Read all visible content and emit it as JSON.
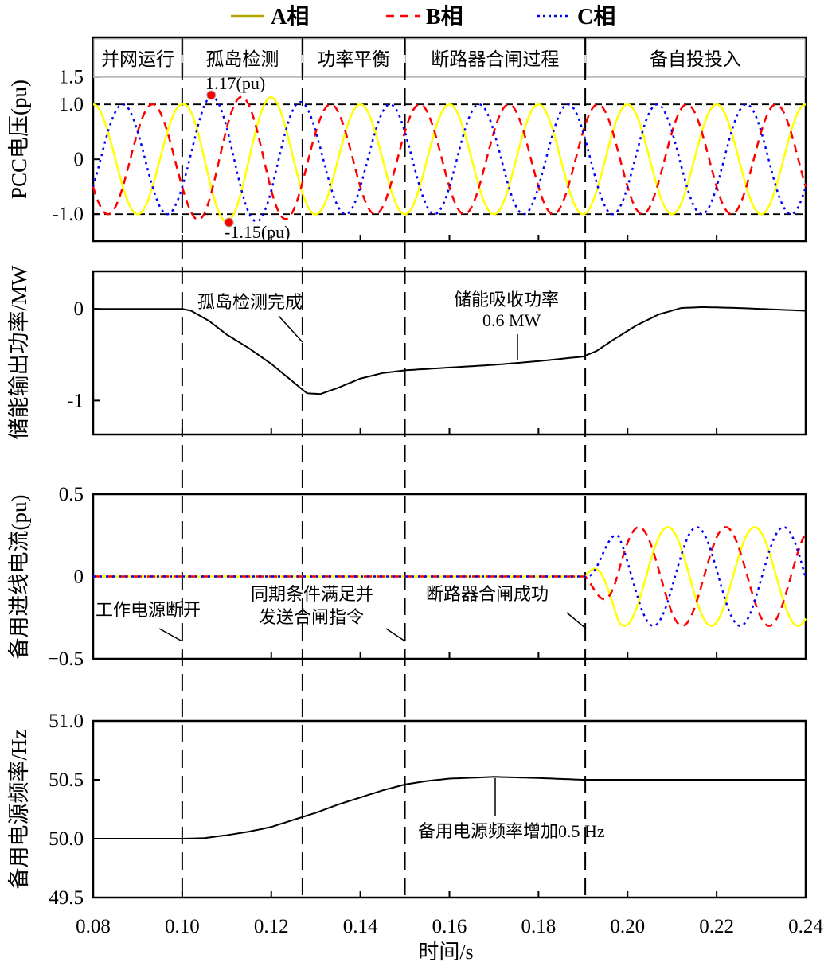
{
  "chart_data": {
    "type": "line",
    "legend": {
      "placement": "top",
      "entries": [
        "A相",
        "B相",
        "C相"
      ]
    },
    "series_colors": {
      "A": "#ffff00",
      "B": "#ff0000",
      "C": "#0000ff",
      "legend_A": "#b0a800"
    },
    "xlabel": "时间/s",
    "xlim": [
      0.08,
      0.24
    ],
    "xticks": [
      "0.08",
      "0.10",
      "0.12",
      "0.14",
      "0.16",
      "0.18",
      "0.20",
      "0.22",
      "0.24"
    ],
    "event_times": [
      0.1,
      0.127,
      0.15,
      0.1905
    ],
    "phases": [
      "并网运行",
      "孤岛检测",
      "功率平衡",
      "断路器合闸过程",
      "备自投投入"
    ],
    "panels": [
      {
        "ylabel": "PCC电压(pu)",
        "ylim": [
          -1.49,
          2.22
        ],
        "yticks": [
          {
            "v": 1.5,
            "t": "1.5"
          },
          {
            "v": 1.0,
            "t": "1.0"
          },
          {
            "v": 0,
            "t": "0"
          },
          {
            "v": -1.0,
            "t": "-1.0"
          }
        ],
        "reference_lines": [
          1.0,
          -1.0
        ],
        "waveform": {
          "frequency_hz": 50,
          "phase_offsets_deg": {
            "A": 0,
            "B": 120,
            "C": -120
          },
          "amplitude_envelope": [
            [
              0.08,
              1.0
            ],
            [
              0.1,
              1.0
            ],
            [
              0.105,
              1.14
            ],
            [
              0.12,
              1.13
            ],
            [
              0.13,
              1.0
            ],
            [
              0.24,
              1.0
            ]
          ]
        },
        "annotations": [
          "1.17(pu)",
          "-1.15(pu)"
        ],
        "marked_points": [
          {
            "x": 0.1065,
            "y": 1.17
          },
          {
            "x": 0.1105,
            "y": -1.15
          }
        ]
      },
      {
        "ylabel": "储能输出功率/MW",
        "ylim": [
          -1.37,
          0.41
        ],
        "yticks": [
          {
            "v": 0,
            "t": "0"
          },
          {
            "v": -1,
            "t": "-1"
          }
        ],
        "points": [
          [
            0.08,
            0
          ],
          [
            0.1,
            0
          ],
          [
            0.102,
            -0.02
          ],
          [
            0.106,
            -0.13
          ],
          [
            0.11,
            -0.28
          ],
          [
            0.115,
            -0.43
          ],
          [
            0.12,
            -0.6
          ],
          [
            0.125,
            -0.8
          ],
          [
            0.128,
            -0.92
          ],
          [
            0.131,
            -0.93
          ],
          [
            0.135,
            -0.86
          ],
          [
            0.14,
            -0.76
          ],
          [
            0.145,
            -0.7
          ],
          [
            0.15,
            -0.67
          ],
          [
            0.16,
            -0.64
          ],
          [
            0.17,
            -0.61
          ],
          [
            0.18,
            -0.57
          ],
          [
            0.19,
            -0.52
          ],
          [
            0.193,
            -0.46
          ],
          [
            0.197,
            -0.33
          ],
          [
            0.202,
            -0.18
          ],
          [
            0.207,
            -0.06
          ],
          [
            0.212,
            0.01
          ],
          [
            0.217,
            0.02
          ],
          [
            0.225,
            0.01
          ],
          [
            0.24,
            -0.02
          ]
        ],
        "annotations": [
          "孤岛检测完成",
          "储能吸收功率",
          "0.6 MW"
        ]
      },
      {
        "ylabel": "备用进线电流(pu)",
        "ylim": [
          -0.5,
          0.5
        ],
        "yticks": [
          {
            "v": 0.5,
            "t": "0.5"
          },
          {
            "v": 0,
            "t": "0"
          },
          {
            "v": -0.5,
            "t": "−0.5"
          }
        ],
        "waveform": {
          "start_time": 0.1905,
          "frequency_hz": 51.3,
          "amplitude": 0.3,
          "ramp_end": 0.198,
          "A_trough_time": 0.1993,
          "phase_offsets_deg": {
            "A": 0,
            "B": 120,
            "C": -120
          }
        },
        "annotations": [
          "工作电源断开",
          "同期条件满足并",
          "发送合闸指令",
          "断路器合闸成功"
        ]
      },
      {
        "ylabel": "备用电源频率/Hz",
        "ylim": [
          49.5,
          51.0
        ],
        "yticks": [
          {
            "v": 51.0,
            "t": "51.0"
          },
          {
            "v": 50.5,
            "t": "50.5"
          },
          {
            "v": 50.0,
            "t": "50.0"
          },
          {
            "v": 49.5,
            "t": "49.5"
          }
        ],
        "points": [
          [
            0.08,
            50
          ],
          [
            0.1,
            50
          ],
          [
            0.105,
            50.005
          ],
          [
            0.11,
            50.03
          ],
          [
            0.115,
            50.06
          ],
          [
            0.12,
            50.1
          ],
          [
            0.125,
            50.16
          ],
          [
            0.13,
            50.22
          ],
          [
            0.135,
            50.29
          ],
          [
            0.14,
            50.35
          ],
          [
            0.145,
            50.41
          ],
          [
            0.15,
            50.46
          ],
          [
            0.155,
            50.49
          ],
          [
            0.16,
            50.51
          ],
          [
            0.17,
            50.525
          ],
          [
            0.18,
            50.515
          ],
          [
            0.19,
            50.5
          ],
          [
            0.21,
            50.5
          ],
          [
            0.24,
            50.5
          ]
        ],
        "annotations": [
          "备用电源频率增加0.5 Hz"
        ]
      }
    ]
  }
}
